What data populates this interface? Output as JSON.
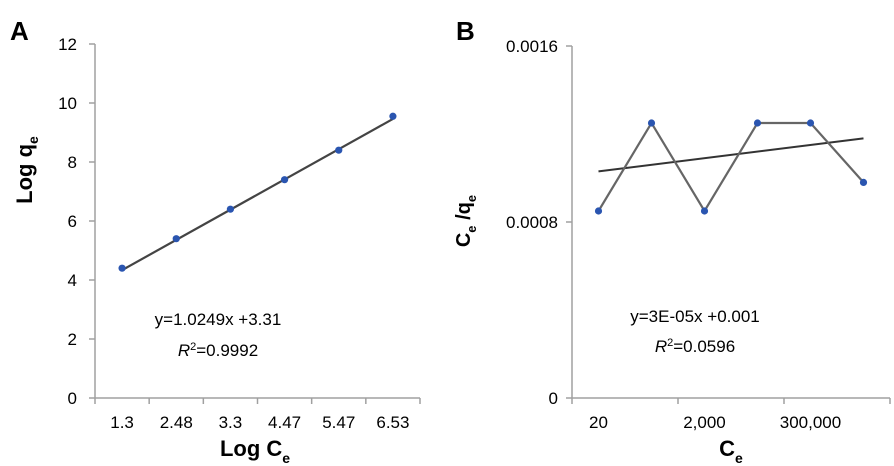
{
  "chart_data": [
    {
      "panel": "A",
      "type": "scatter",
      "x_tick_labels": [
        "1.3",
        "2.48",
        "3.3",
        "4.47",
        "5.47",
        "6.53"
      ],
      "y_ticks": [
        0,
        2,
        4,
        6,
        8,
        10,
        12
      ],
      "ylim": [
        0,
        12
      ],
      "xlabel": "Log C",
      "xlabel_sub": "e",
      "ylabel": "Log q",
      "ylabel_sub": "e",
      "series": [
        {
          "x": [
            1,
            2,
            3,
            4,
            5,
            6
          ],
          "y": [
            4.4,
            5.4,
            6.4,
            7.4,
            8.4,
            9.55
          ]
        }
      ],
      "trendline": {
        "slope": 1.0249,
        "intercept": 3.31
      },
      "equation": "y=1.0249x +3.31",
      "r2_label": "R",
      "r2_value": "=0.9992",
      "grid": false,
      "colors": {
        "points": "#2a55b0",
        "line": "#444444"
      }
    },
    {
      "panel": "B",
      "type": "line",
      "x_tick_labels": [
        "20",
        "2,000",
        "300,000"
      ],
      "y_tick_labels": [
        "0",
        "0.0008",
        "0.0016"
      ],
      "y_ticks": [
        0,
        0.0008,
        0.0016
      ],
      "ylim": [
        0,
        0.0016
      ],
      "xlabel": "C",
      "xlabel_sub": "e",
      "ylabel": "C",
      "ylabel_sub1": "e",
      "ylabel_mid": " /q",
      "ylabel_sub2": "e",
      "series": [
        {
          "x": [
            1,
            2,
            3,
            4,
            5,
            6
          ],
          "y": [
            0.00085,
            0.00125,
            0.00085,
            0.00125,
            0.00125,
            0.00098
          ]
        }
      ],
      "trendline": {
        "slope": 3e-05,
        "intercept": 0.001
      },
      "equation": "y=3E-05x +0.001",
      "r2_label": "R",
      "r2_value": "=0.0596",
      "grid": false,
      "colors": {
        "points": "#2a55b0",
        "line": "#666666"
      }
    }
  ],
  "panel_labels": {
    "a": "A",
    "b": "B"
  },
  "superscript_2": "2"
}
